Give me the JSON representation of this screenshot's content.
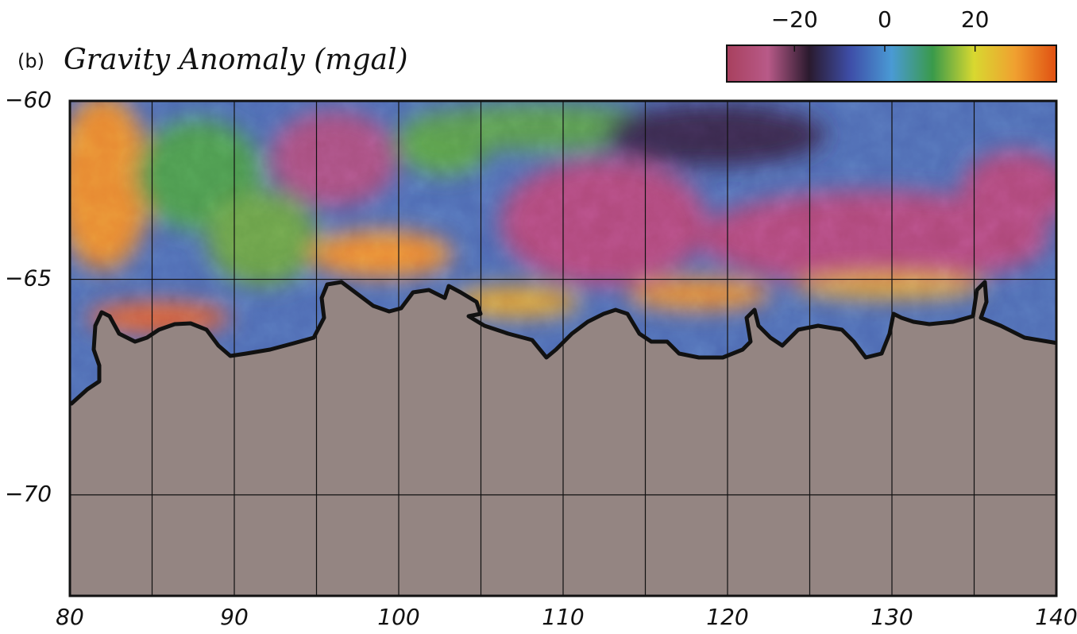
{
  "label": "(b)",
  "chart_data": {
    "type": "map",
    "title": "Gravity Anomaly (mgal)",
    "projection": "mercator",
    "xlim": [
      80,
      140
    ],
    "ylim": [
      -60,
      -72
    ],
    "xticks": [
      80,
      90,
      100,
      110,
      120,
      130,
      140
    ],
    "yticks": [
      {
        "value": -60,
        "label": "−60"
      },
      {
        "value": -65,
        "label": "−65"
      },
      {
        "value": -70,
        "label": "−70"
      }
    ],
    "x_grid": [
      85,
      90,
      95,
      100,
      105,
      110,
      115,
      120,
      125,
      130,
      135
    ],
    "y_grid": [
      -65,
      -70
    ],
    "grid_color": "#111111",
    "land_color": "#948582",
    "colorbar": {
      "lim": [
        -35,
        38
      ],
      "ticks": [
        {
          "value": -20,
          "label": "−20"
        },
        0,
        20
      ],
      "colors": [
        "#a8405e",
        "#b85a88",
        "#2a1a2e",
        "#3e4ea8",
        "#4a9ad4",
        "#3a9a4a",
        "#d8d830",
        "#f0a030",
        "#e05012"
      ]
    }
  }
}
